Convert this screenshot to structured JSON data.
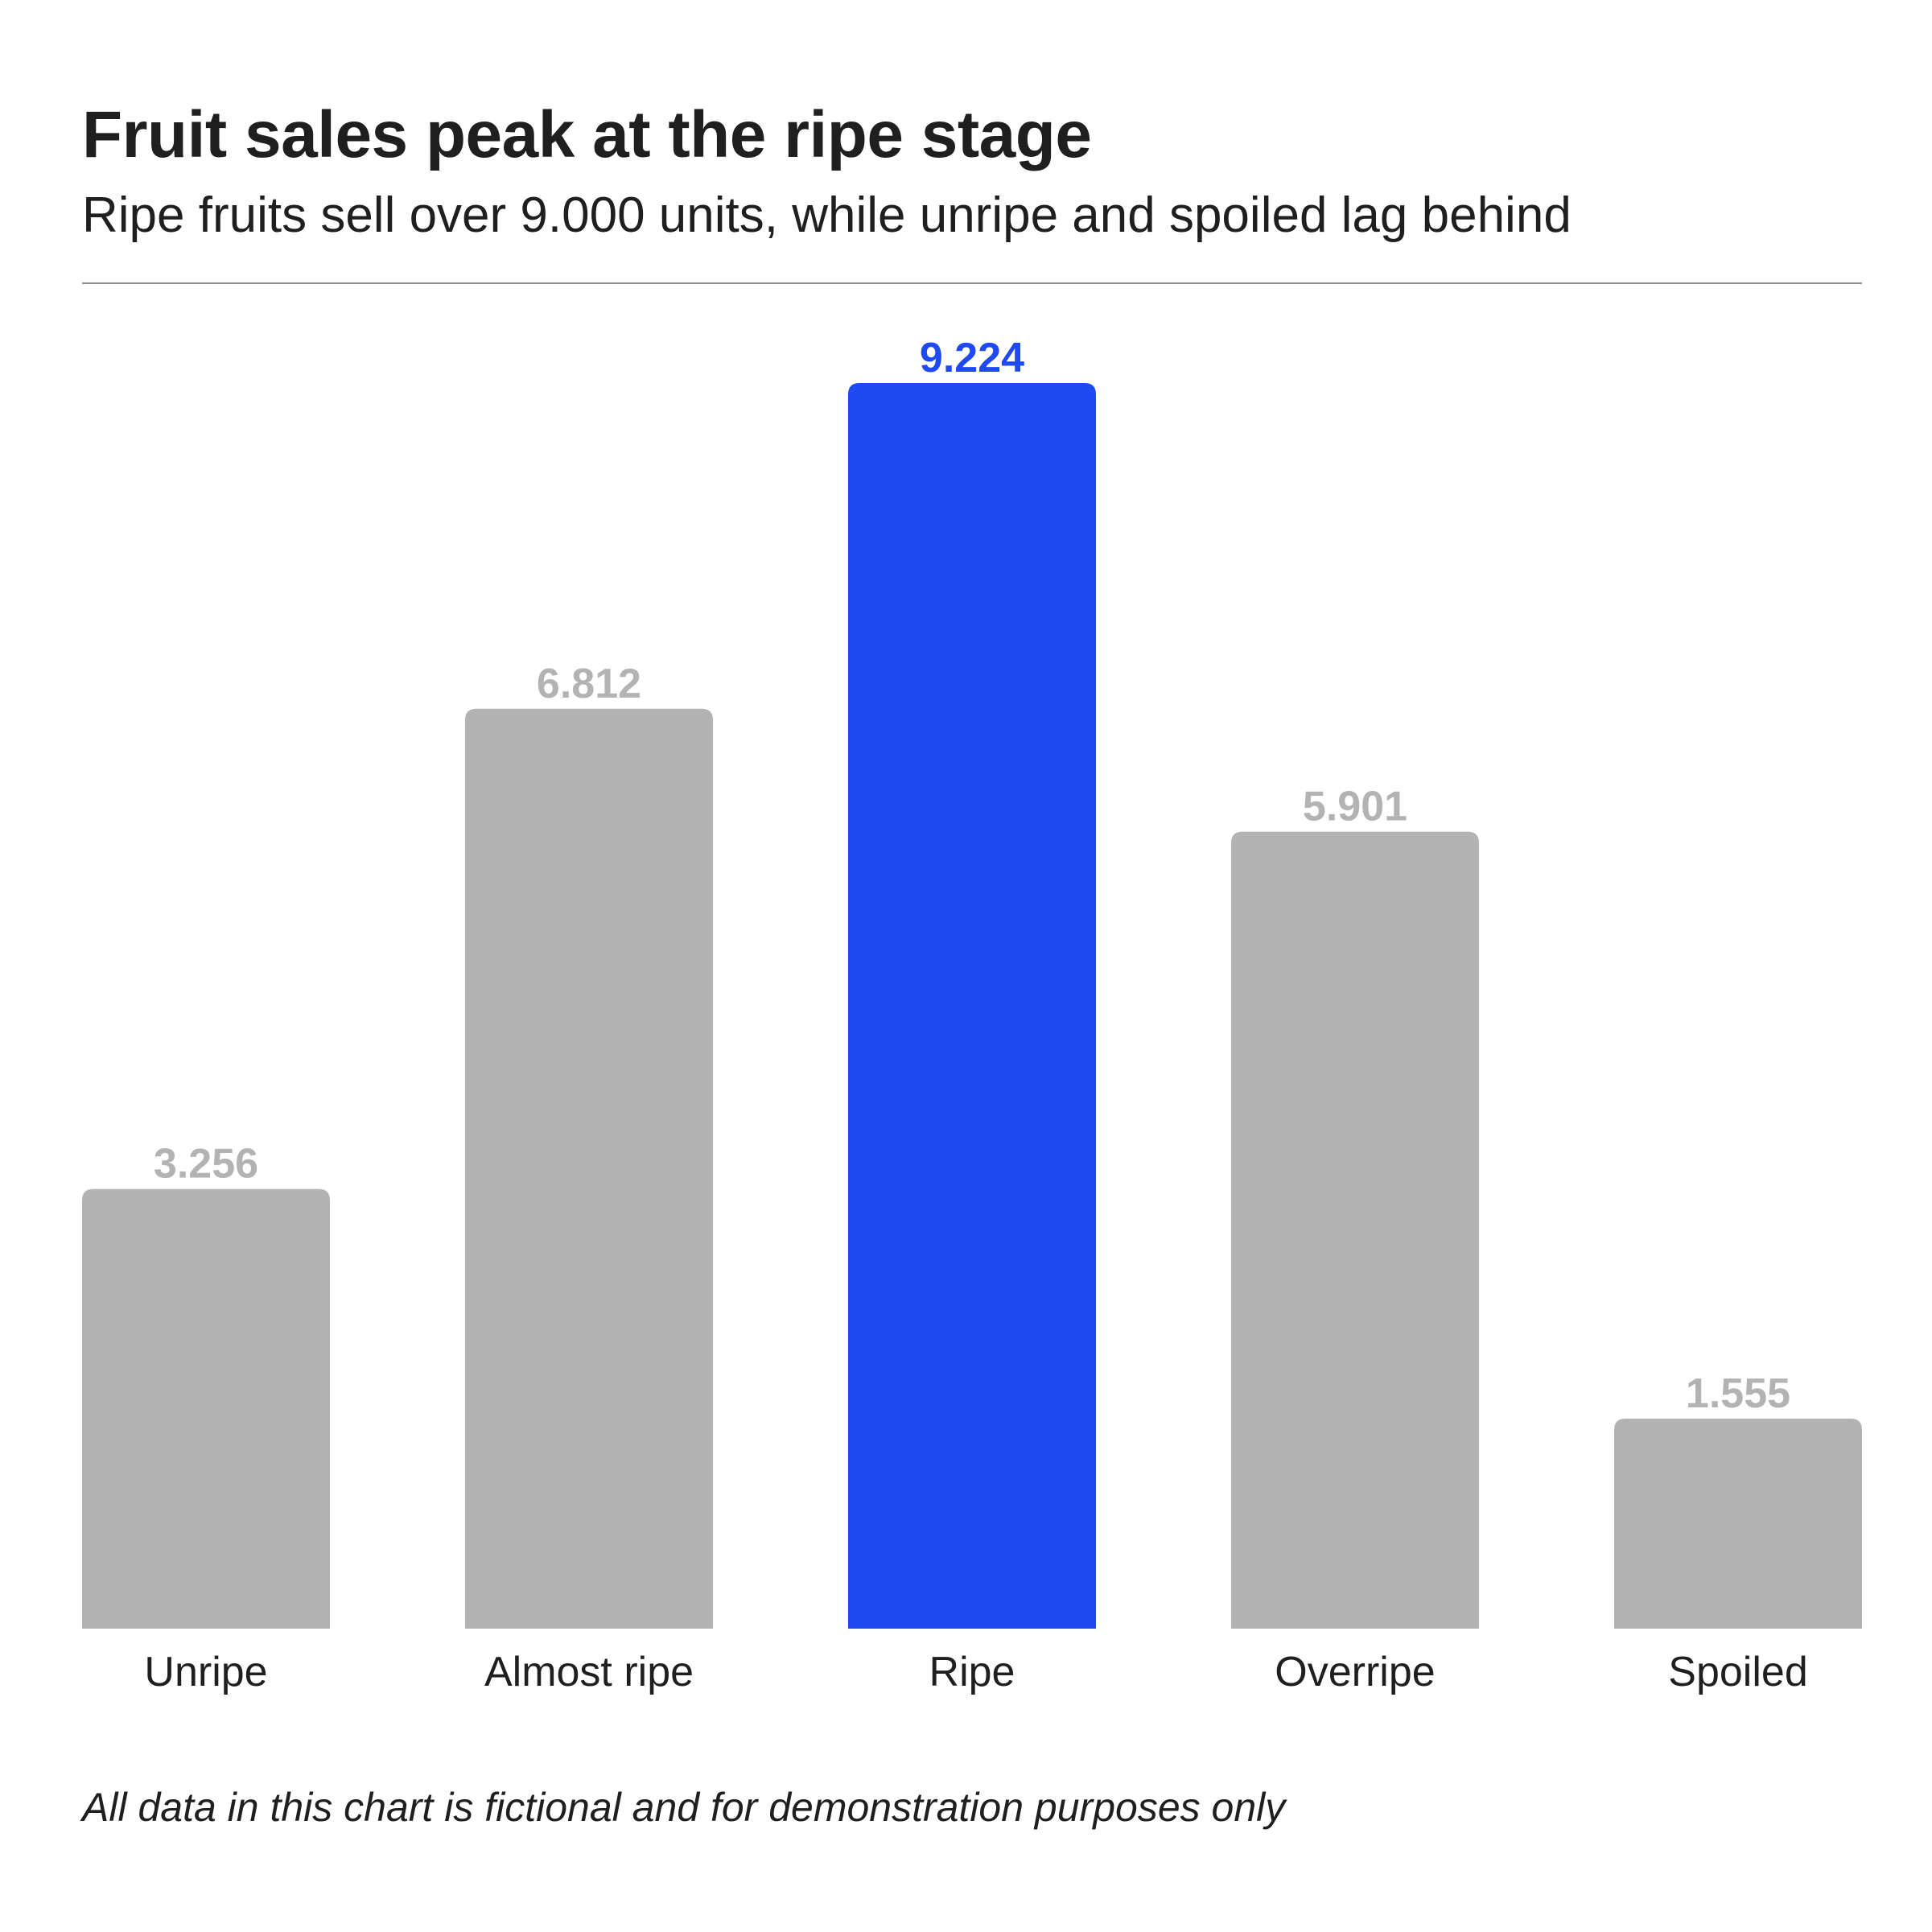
{
  "header": {
    "title": "Fruit sales peak at the ripe stage",
    "subtitle": "Ripe fruits sell over 9.000 units, while unripe and spoiled lag behind"
  },
  "footer": {
    "note": "All data in this chart is fictional and for demonstration purposes only"
  },
  "colors": {
    "default_bar": "#b3b3b3",
    "highlight_bar": "#1f4af2",
    "default_label": "#b3b3b3",
    "highlight_label": "#1f4af2",
    "category_text": "#1f1f1f"
  },
  "chart_data": {
    "type": "bar",
    "title": "Fruit sales peak at the ripe stage",
    "subtitle": "Ripe fruits sell over 9.000 units, while unripe and spoiled lag behind",
    "xlabel": "",
    "ylabel": "",
    "categories": [
      "Unripe",
      "Almost ripe",
      "Ripe",
      "Overripe",
      "Spoiled"
    ],
    "values": [
      3256,
      6812,
      9224,
      5901,
      1555
    ],
    "value_labels": [
      "3.256",
      "6.812",
      "9.224",
      "5.901",
      "1.555"
    ],
    "highlight": "Ripe",
    "ylim": [
      0,
      9224
    ],
    "grid": false,
    "legend": "none"
  }
}
